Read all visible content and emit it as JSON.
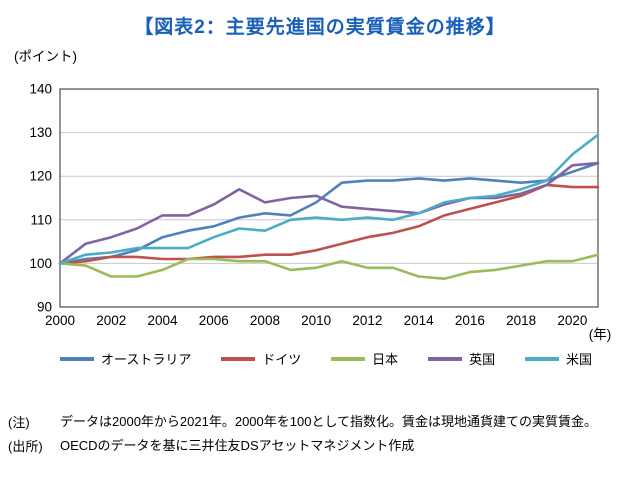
{
  "title": "【図表2：主要先進国の実質賃金の推移】",
  "chart": {
    "y_unit_label": "(ポイント)",
    "x_unit_label": "(年)"
  },
  "chart_data": {
    "type": "line",
    "x": [
      2000,
      2001,
      2002,
      2003,
      2004,
      2005,
      2006,
      2007,
      2008,
      2009,
      2010,
      2011,
      2012,
      2013,
      2014,
      2015,
      2016,
      2017,
      2018,
      2019,
      2020,
      2021
    ],
    "series": [
      {
        "name": "オーストラリア",
        "color": "#4F81BD",
        "values": [
          100,
          101,
          101.5,
          103,
          106,
          107.5,
          108.5,
          110.5,
          111.5,
          111,
          114,
          118.5,
          119,
          119,
          119.5,
          119,
          119.5,
          119,
          118.5,
          119,
          121,
          123
        ]
      },
      {
        "name": "ドイツ",
        "color": "#C0504D",
        "values": [
          100,
          100.5,
          101.5,
          101.5,
          101,
          101,
          101.5,
          101.5,
          102,
          102,
          103,
          104.5,
          106,
          107,
          108.5,
          111,
          112.5,
          114,
          115.5,
          118,
          117.5,
          117.5
        ]
      },
      {
        "name": "日本",
        "color": "#9BBB59",
        "values": [
          100,
          99.5,
          97,
          97,
          98.5,
          101,
          101,
          100.5,
          100.5,
          98.5,
          99,
          100.5,
          99,
          99,
          97,
          96.5,
          98,
          98.5,
          99.5,
          100.5,
          100.5,
          102
        ]
      },
      {
        "name": "英国",
        "color": "#8064A2",
        "values": [
          100,
          104.5,
          106,
          108,
          111,
          111,
          113.5,
          117,
          114,
          115,
          115.5,
          113,
          112.5,
          112,
          111.5,
          113.5,
          115,
          115,
          116,
          118,
          122.5,
          123
        ]
      },
      {
        "name": "米国",
        "color": "#4BACC6",
        "values": [
          100,
          102,
          102.5,
          103.5,
          103.5,
          103.5,
          106,
          108,
          107.5,
          110,
          110.5,
          110,
          110.5,
          110,
          111.5,
          114,
          115,
          115.5,
          117,
          119,
          125,
          129.5
        ]
      }
    ],
    "ylim": [
      90,
      140
    ],
    "y_ticks": [
      90,
      100,
      110,
      120,
      130,
      140
    ],
    "x_tick_step": 2,
    "grid": true,
    "legend_position": "bottom",
    "title": "主要先進国の実質賃金の推移",
    "xlabel": "年",
    "ylabel": "ポイント"
  },
  "notes": {
    "note_label": "(注)",
    "note_text": "データは2000年から2021年。2000年を100として指数化。賃金は現地通貨建ての実質賃金。",
    "source_label": "(出所)",
    "source_text": "OECDのデータを基に三井住友DSアセットマネジメント作成"
  }
}
